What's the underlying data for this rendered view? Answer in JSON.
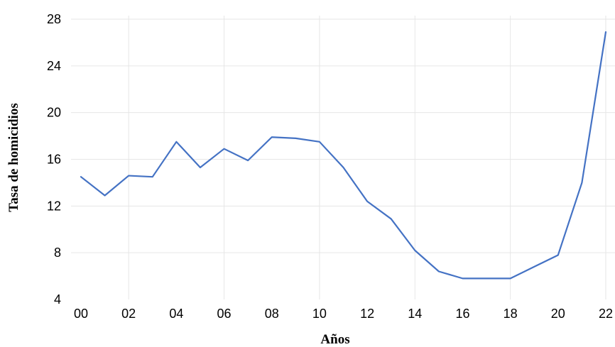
{
  "chart_data": {
    "type": "line",
    "title": "",
    "xlabel": "Años",
    "ylabel": "Tasa de homicidios",
    "x": [
      0,
      1,
      2,
      3,
      4,
      5,
      6,
      7,
      8,
      9,
      10,
      11,
      12,
      13,
      14,
      15,
      16,
      17,
      18,
      19,
      20,
      21,
      22
    ],
    "xtick_labels": [
      "00",
      "02",
      "04",
      "06",
      "08",
      "10",
      "12",
      "14",
      "16",
      "18",
      "20",
      "22"
    ],
    "xtick_values": [
      0,
      2,
      4,
      6,
      8,
      10,
      12,
      14,
      16,
      18,
      20,
      22
    ],
    "yticks": [
      4,
      8,
      12,
      16,
      20,
      24,
      28
    ],
    "ylim": [
      4,
      28
    ],
    "xlim": [
      0,
      22
    ],
    "grid": true,
    "series": [
      {
        "color": "#4472c4",
        "values": [
          14.5,
          12.9,
          14.6,
          14.5,
          17.5,
          15.3,
          16.9,
          15.9,
          17.9,
          17.8,
          17.5,
          15.3,
          12.4,
          10.9,
          8.2,
          6.4,
          5.8,
          5.8,
          5.8,
          6.8,
          7.8,
          14.0,
          26.9
        ]
      }
    ]
  }
}
